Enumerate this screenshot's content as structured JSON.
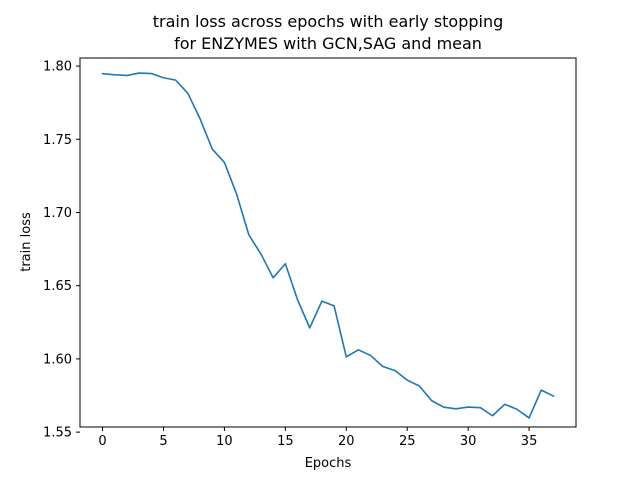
{
  "chart_data": {
    "type": "line",
    "title_line1": "train loss across epochs with early stopping",
    "title_line2": "for ENZYMES with GCN,SAG and mean",
    "xlabel": "Epochs",
    "ylabel": "train loss",
    "xlim": [
      -1.85,
      38.85
    ],
    "ylim": [
      1.5535,
      1.8055
    ],
    "xticks": [
      0,
      5,
      10,
      15,
      20,
      25,
      30,
      35
    ],
    "xtick_labels": [
      "0",
      "5",
      "10",
      "15",
      "20",
      "25",
      "30",
      "35"
    ],
    "yticks": [
      1.55,
      1.6,
      1.65,
      1.7,
      1.75,
      1.8
    ],
    "ytick_labels": [
      "1.55",
      "1.60",
      "1.65",
      "1.70",
      "1.75",
      "1.80"
    ],
    "grid": false,
    "series": [
      {
        "color": "#1f77b4",
        "x": [
          0,
          1,
          2,
          3,
          4,
          5,
          6,
          7,
          8,
          9,
          10,
          11,
          12,
          13,
          14,
          15,
          16,
          17,
          18,
          19,
          20,
          21,
          22,
          23,
          24,
          25,
          26,
          27,
          28,
          29,
          30,
          31,
          32,
          33,
          34,
          35,
          36,
          37
        ],
        "y": [
          1.7948,
          1.794,
          1.7936,
          1.7952,
          1.7949,
          1.792,
          1.7904,
          1.7814,
          1.764,
          1.7433,
          1.7342,
          1.7126,
          1.6848,
          1.6716,
          1.6554,
          1.665,
          1.6404,
          1.6212,
          1.6395,
          1.6362,
          1.6014,
          1.6062,
          1.6023,
          1.5948,
          1.592,
          1.5855,
          1.5815,
          1.5715,
          1.567,
          1.5659,
          1.5671,
          1.5667,
          1.5612,
          1.569,
          1.5656,
          1.5597,
          1.5787,
          1.5746
        ]
      }
    ]
  }
}
